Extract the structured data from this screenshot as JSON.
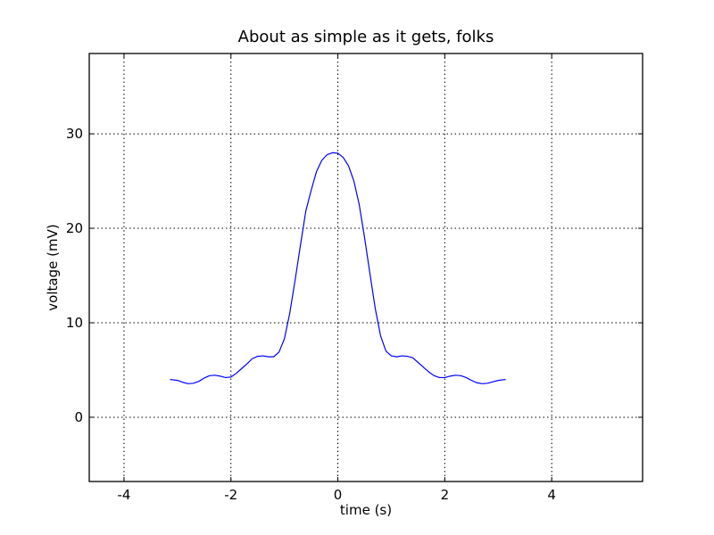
{
  "chart_data": {
    "type": "line",
    "title": "About as simple as it gets, folks",
    "xlabel": "time (s)",
    "ylabel": "voltage (mV)",
    "xlim": [
      -4.65,
      5.7
    ],
    "ylim": [
      -6.8,
      38.5
    ],
    "grid": true,
    "x_ticks": [
      -4,
      -2,
      0,
      2,
      4
    ],
    "x_tick_labels": [
      "-4",
      "-2",
      "0",
      "2",
      "4"
    ],
    "y_ticks": [
      0,
      10,
      20,
      30
    ],
    "y_tick_labels": [
      "0",
      "10",
      "20",
      "30"
    ],
    "series": [
      {
        "color": "#0000ff",
        "x": [
          -3.14,
          -3.0,
          -2.9,
          -2.8,
          -2.7,
          -2.6,
          -2.5,
          -2.4,
          -2.3,
          -2.2,
          -2.1,
          -2.0,
          -1.9,
          -1.8,
          -1.7,
          -1.6,
          -1.5,
          -1.4,
          -1.3,
          -1.2,
          -1.1,
          -1.0,
          -0.9,
          -0.8,
          -0.7,
          -0.6,
          -0.5,
          -0.4,
          -0.3,
          -0.2,
          -0.1,
          0.0,
          0.1,
          0.2,
          0.3,
          0.4,
          0.5,
          0.6,
          0.7,
          0.8,
          0.9,
          1.0,
          1.1,
          1.2,
          1.3,
          1.4,
          1.5,
          1.6,
          1.7,
          1.8,
          1.9,
          2.0,
          2.1,
          2.2,
          2.3,
          2.4,
          2.5,
          2.6,
          2.7,
          2.8,
          2.9,
          3.0,
          3.14
        ],
        "y": [
          4.0,
          3.9,
          3.7,
          3.55,
          3.6,
          3.8,
          4.15,
          4.4,
          4.45,
          4.35,
          4.2,
          4.25,
          4.65,
          5.15,
          5.65,
          6.2,
          6.45,
          6.5,
          6.4,
          6.4,
          6.9,
          8.3,
          11.0,
          14.5,
          18.2,
          21.8,
          24.0,
          26.0,
          27.2,
          27.8,
          28.0,
          27.95,
          27.5,
          26.6,
          25.0,
          22.5,
          19.0,
          15.2,
          11.5,
          8.6,
          7.0,
          6.5,
          6.4,
          6.5,
          6.45,
          6.3,
          5.8,
          5.3,
          4.8,
          4.4,
          4.2,
          4.2,
          4.35,
          4.45,
          4.4,
          4.2,
          3.9,
          3.65,
          3.55,
          3.6,
          3.75,
          3.9,
          4.0
        ]
      }
    ]
  }
}
